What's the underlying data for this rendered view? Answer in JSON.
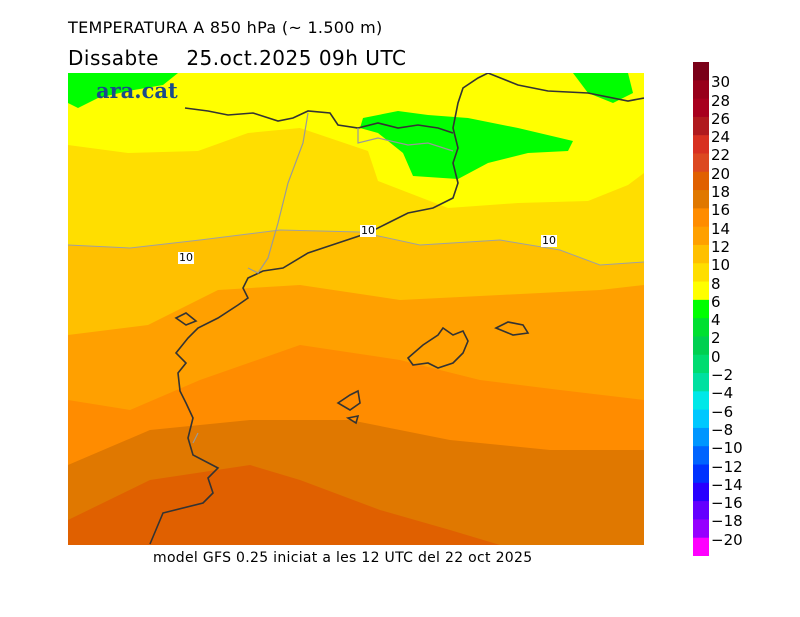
{
  "header": {
    "title": "TEMPERATURA A 850 hPa (~ 1.500 m)",
    "subtitle": "Dissabte    25.oct.2025 09h UTC"
  },
  "footer": "model GFS 0.25 iniciat a les 12 UTC del 22 oct 2025",
  "logo": "ara.cat",
  "contour_labels": [
    "10",
    "10",
    "10"
  ],
  "legend": {
    "labels": [
      "30",
      "28",
      "26",
      "24",
      "22",
      "20",
      "18",
      "16",
      "14",
      "12",
      "10",
      "8",
      "6",
      "4",
      "2",
      "0",
      "−2",
      "−4",
      "−6",
      "−8",
      "−10",
      "−12",
      "−14",
      "−16",
      "−18",
      "−20"
    ],
    "colors": [
      "#7a0018",
      "#98001a",
      "#a8001e",
      "#b01a1e",
      "#d83020",
      "#dc4820",
      "#e06000",
      "#e07800",
      "#ff8c00",
      "#ffa000",
      "#ffc000",
      "#ffde00",
      "#ffff00",
      "#00ff00",
      "#00e030",
      "#00d050",
      "#00dc70",
      "#00e0a0",
      "#00e8e8",
      "#00c8ff",
      "#0096ff",
      "#0064ff",
      "#0032ff",
      "#2800ff",
      "#6400ff",
      "#9600ff",
      "#ff00ff"
    ]
  }
}
